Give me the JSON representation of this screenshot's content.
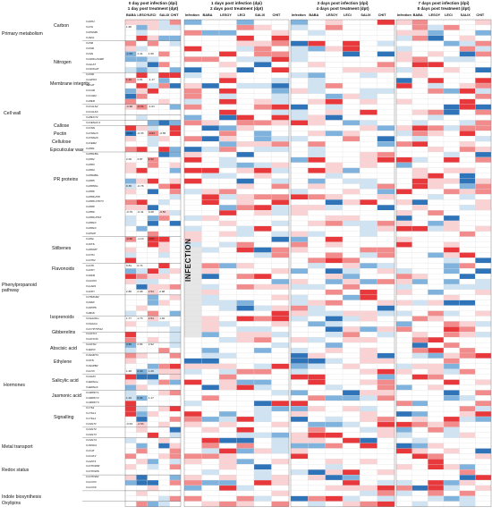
{
  "blocks": [
    {
      "time_label": "0 day post infection (dpi)",
      "treatment_label": "1 day post treatment (dpt)",
      "columns": [
        "BABA",
        "LESOY",
        "LECI",
        "SALIX",
        "CHIT"
      ]
    },
    {
      "time_label": "1 days post infection (dpi)",
      "treatment_label": "2 days post treatment (dpt)",
      "columns": [
        "Infection",
        "BABA",
        "LESOY",
        "LECI",
        "SALIX",
        "CHIT"
      ]
    },
    {
      "time_label": "3 days post infection (dpi)",
      "treatment_label": "4 days post treatment (dpt)",
      "columns": [
        "Infection",
        "BABA",
        "LESOY",
        "LECI",
        "SALIX",
        "CHIT"
      ]
    },
    {
      "time_label": "7 days post infection (dpi)",
      "treatment_label": "8 days post treatment (dpt)",
      "columns": [
        "Infection",
        "BABA",
        "LESOY",
        "LECI",
        "SALIX",
        "CHIT"
      ]
    }
  ],
  "infection_label": "INFECTION",
  "categories": [
    {
      "label": "Carbon"
    },
    {
      "label": "Primary metabolism"
    },
    {
      "label": "Nitrogen"
    },
    {
      "label": "Membrane integrity"
    },
    {
      "label": "Cell wall"
    },
    {
      "label": "Callose"
    },
    {
      "label": "Pectin"
    },
    {
      "label": "Cellulose"
    },
    {
      "label": "Epicuticular wax"
    },
    {
      "label": "PR proteins"
    },
    {
      "label": "Stilbenes"
    },
    {
      "label": "Flavonoids"
    },
    {
      "label": "Phenylpropanoid pathway"
    },
    {
      "label": "Isoprenoids"
    },
    {
      "label": "Gibberelins"
    },
    {
      "label": "Abscisic acid"
    },
    {
      "label": "Ethylene"
    },
    {
      "label": "Salicylic acid"
    },
    {
      "label": "Hormones"
    },
    {
      "label": "Jasmonic acid"
    },
    {
      "label": "Signalling"
    },
    {
      "label": "Metal transport"
    },
    {
      "label": "Redox status"
    },
    {
      "label": "Indole biosynthesis"
    },
    {
      "label": "Oxylipins"
    }
  ],
  "genes": [
    "VvDH1",
    "VvCS",
    "VvPGMD",
    "VvSAL",
    "VvNR",
    "VvNIR",
    "VvGS",
    "VvGHD-NADP",
    "VvALAT",
    "VvGOGAT",
    "VvNIR",
    "VvAPOX",
    "VvCAT",
    "VvCAD",
    "VvCAD2",
    "VvPER",
    "VvCALS2",
    "VvCALS3",
    "VvPECT2",
    "VvCESA3,1",
    "VvCSS",
    "VvCSS13",
    "VvCSS20",
    "VvCER2",
    "VvPR1",
    "VvPR1Bis",
    "VvPR2",
    "VvPR3",
    "VvPR4",
    "VvPR4Bis",
    "VvPR5",
    "VvPR5bis",
    "VvPR6",
    "VvPR6-PIN",
    "VvPR8-CHIT3",
    "VvPR8",
    "VvPR9",
    "VvPR9-POX",
    "VvPR10",
    "VvPR10",
    "VvPGIP",
    "VvPAL",
    "VvSTS",
    "VvROMT",
    "VvCH1",
    "VvCHI2",
    "VvCHI",
    "VvF3H",
    "VvDFR",
    "VvLDOX",
    "VvLAR1",
    "VvF3H",
    "VvHMGR2",
    "VvFAR",
    "VvFPPS",
    "VvBAS",
    "VvGA20ox",
    "VvGA2ox",
    "VvCYP707A2",
    "VvACO1",
    "VvACO1b",
    "VvACS1",
    "VvEIN3",
    "VvSAMT1",
    "VvICS",
    "VvSAPB2",
    "VvLOX",
    "VvJAZ1",
    "VvEDS1a",
    "VvEDS1b",
    "VvWRKY1",
    "VvWRKY2",
    "VvWRKY3",
    "VvYS1",
    "VvYSL1",
    "VvYSL2",
    "VvGST1",
    "VvGST2",
    "VvGST3",
    "VvGST4",
    "VvSOD1",
    "VvCAT",
    "VvCAT2",
    "VvANT1",
    "VvCHORM",
    "VvCHORS",
    "VvCHOR2",
    "VvLOX3",
    "VvLOX9"
  ],
  "values_labeled": {
    "row_0": [
      "1.66",
      "",
      "",
      "",
      "",
      ""
    ],
    "row_1": [
      "-1.83",
      "1.41",
      "1.66",
      "",
      "",
      ""
    ],
    "row_2": [
      "1.10",
      "2.81",
      "-1.17",
      "",
      "",
      ""
    ],
    "row_3": [
      "-0.98",
      "-0.64",
      "-1.01",
      "",
      "",
      ""
    ],
    "row_4": [
      "-0.41",
      "-0.33",
      "-0.84",
      "-0.55",
      "",
      ""
    ],
    "row_5": [
      "2.00",
      "3.87",
      "1.52",
      "",
      "",
      ""
    ],
    "row_6": [
      "0.35",
      "-0.78",
      "",
      "",
      "",
      ""
    ],
    "row_7": [
      "-0.79",
      "-0.41",
      "0.28",
      "-0.50",
      "",
      ""
    ],
    "row_8": [
      "-0.80",
      "-1.10",
      "-0.57",
      "",
      "",
      ""
    ],
    "row_9": [
      "0.81",
      "0.74",
      "",
      "",
      "",
      ""
    ],
    "row_10": [
      "2.80",
      "2.08",
      "2.54",
      "2.98",
      "",
      ""
    ],
    "row_11": [
      "1.77",
      "1.73",
      "2.54",
      "1.40",
      "",
      ""
    ],
    "row_12": [
      "3.56",
      "2.84",
      "2.92",
      "",
      "",
      ""
    ],
    "row_13": [
      "1.26",
      "2.43",
      "1.26",
      "",
      "",
      ""
    ],
    "row_14": [
      "1.24",
      "0.94",
      "1.17",
      "",
      "",
      ""
    ],
    "row_15": [
      "-0.63",
      "-2.53",
      "",
      "",
      "",
      ""
    ]
  },
  "colors": {
    "up_strong": "#e8383b",
    "up_mid": "#f28b8c",
    "up_light": "#fbd2d3",
    "down_strong": "#2f73b8",
    "down_mid": "#7fb2dc",
    "down_light": "#cfe3f2",
    "neutral": "#ffffff",
    "infection_column": "#e6e6e6"
  }
}
